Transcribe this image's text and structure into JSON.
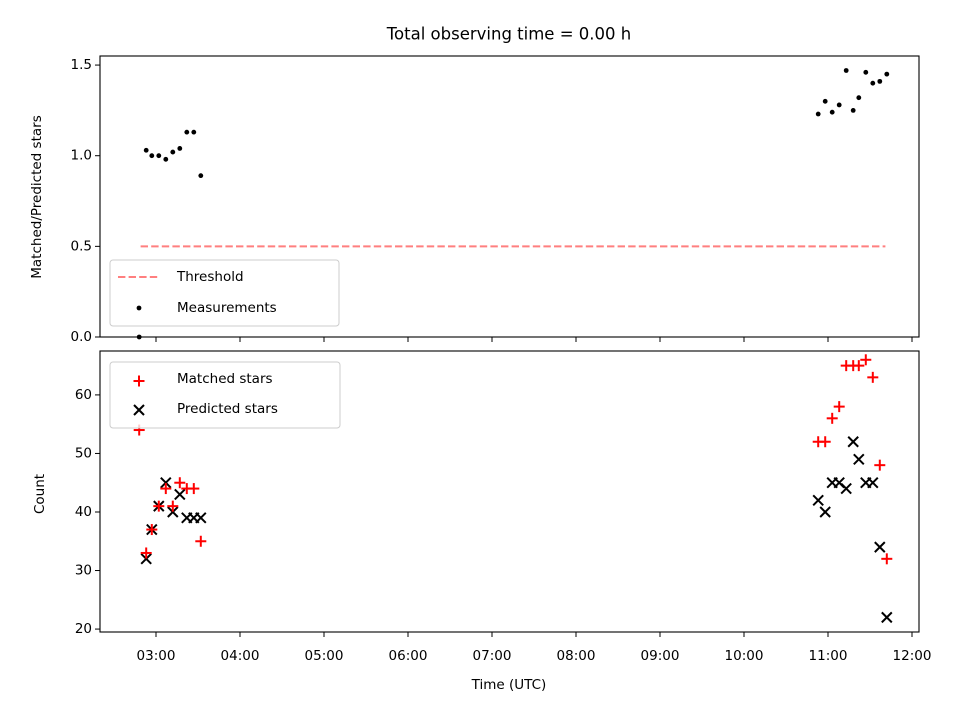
{
  "title": "Total observing time = 0.00 h",
  "chart_data": [
    {
      "type": "line",
      "ylabel": "Matched/Predicted stars",
      "ylim": [
        0,
        1.55
      ],
      "yticks": [
        "0.0",
        "0.5",
        "1.0",
        "1.5"
      ],
      "ytick_values": [
        0,
        0.5,
        1.0,
        1.5
      ],
      "xlim": [
        "02:20",
        "12:05"
      ],
      "threshold": {
        "name": "Threshold",
        "value": 0.5,
        "x_start": "02:49",
        "x_end": "11:41",
        "color": "#ff7f7f",
        "style": "dashed"
      },
      "measurements": {
        "name": "Measurements",
        "color": "#000000",
        "points": [
          {
            "x": "02:48",
            "y": 0.0
          },
          {
            "x": "02:53",
            "y": 1.03
          },
          {
            "x": "02:57",
            "y": 1.0
          },
          {
            "x": "03:02",
            "y": 1.0
          },
          {
            "x": "03:07",
            "y": 0.98
          },
          {
            "x": "03:12",
            "y": 1.02
          },
          {
            "x": "03:17",
            "y": 1.04
          },
          {
            "x": "03:22",
            "y": 1.13
          },
          {
            "x": "03:27",
            "y": 1.13
          },
          {
            "x": "03:32",
            "y": 0.89
          },
          {
            "x": "10:53",
            "y": 1.23
          },
          {
            "x": "10:58",
            "y": 1.3
          },
          {
            "x": "11:03",
            "y": 1.24
          },
          {
            "x": "11:08",
            "y": 1.28
          },
          {
            "x": "11:13",
            "y": 1.47
          },
          {
            "x": "11:18",
            "y": 1.25
          },
          {
            "x": "11:22",
            "y": 1.32
          },
          {
            "x": "11:27",
            "y": 1.46
          },
          {
            "x": "11:32",
            "y": 1.4
          },
          {
            "x": "11:37",
            "y": 1.41
          },
          {
            "x": "11:42",
            "y": 1.45
          }
        ]
      },
      "legend_position": "lower-left",
      "grid": false
    },
    {
      "type": "scatter",
      "xlabel": "Time (UTC)",
      "ylabel": "Count",
      "ylim": [
        19.5,
        67.5
      ],
      "yticks": [
        "20",
        "30",
        "40",
        "50",
        "60"
      ],
      "ytick_values": [
        20,
        30,
        40,
        50,
        60
      ],
      "xlim": [
        "02:20",
        "12:05"
      ],
      "xticks": [
        "03:00",
        "04:00",
        "05:00",
        "06:00",
        "07:00",
        "08:00",
        "09:00",
        "10:00",
        "11:00",
        "12:00"
      ],
      "series": [
        {
          "name": "Matched stars",
          "marker": "plus",
          "color": "#ff0000",
          "points": [
            {
              "x": "02:48",
              "y": 54
            },
            {
              "x": "02:53",
              "y": 33
            },
            {
              "x": "02:57",
              "y": 37
            },
            {
              "x": "03:02",
              "y": 41
            },
            {
              "x": "03:07",
              "y": 44
            },
            {
              "x": "03:12",
              "y": 41
            },
            {
              "x": "03:17",
              "y": 45
            },
            {
              "x": "03:22",
              "y": 44
            },
            {
              "x": "03:27",
              "y": 44
            },
            {
              "x": "03:32",
              "y": 35
            },
            {
              "x": "10:53",
              "y": 52
            },
            {
              "x": "10:58",
              "y": 52
            },
            {
              "x": "11:03",
              "y": 56
            },
            {
              "x": "11:08",
              "y": 58
            },
            {
              "x": "11:13",
              "y": 65
            },
            {
              "x": "11:18",
              "y": 65
            },
            {
              "x": "11:22",
              "y": 65
            },
            {
              "x": "11:27",
              "y": 66
            },
            {
              "x": "11:32",
              "y": 63
            },
            {
              "x": "11:37",
              "y": 48
            },
            {
              "x": "11:42",
              "y": 32
            }
          ]
        },
        {
          "name": "Predicted stars",
          "marker": "x",
          "color": "#000000",
          "points": [
            {
              "x": "02:53",
              "y": 32
            },
            {
              "x": "02:57",
              "y": 37
            },
            {
              "x": "03:02",
              "y": 41
            },
            {
              "x": "03:07",
              "y": 45
            },
            {
              "x": "03:12",
              "y": 40
            },
            {
              "x": "03:17",
              "y": 43
            },
            {
              "x": "03:22",
              "y": 39
            },
            {
              "x": "03:27",
              "y": 39
            },
            {
              "x": "03:32",
              "y": 39
            },
            {
              "x": "10:53",
              "y": 42
            },
            {
              "x": "10:58",
              "y": 40
            },
            {
              "x": "11:03",
              "y": 45
            },
            {
              "x": "11:08",
              "y": 45
            },
            {
              "x": "11:13",
              "y": 44
            },
            {
              "x": "11:18",
              "y": 52
            },
            {
              "x": "11:22",
              "y": 49
            },
            {
              "x": "11:27",
              "y": 45
            },
            {
              "x": "11:32",
              "y": 45
            },
            {
              "x": "11:37",
              "y": 34
            },
            {
              "x": "11:42",
              "y": 22
            }
          ]
        }
      ],
      "legend_position": "upper-left",
      "grid": false
    }
  ]
}
